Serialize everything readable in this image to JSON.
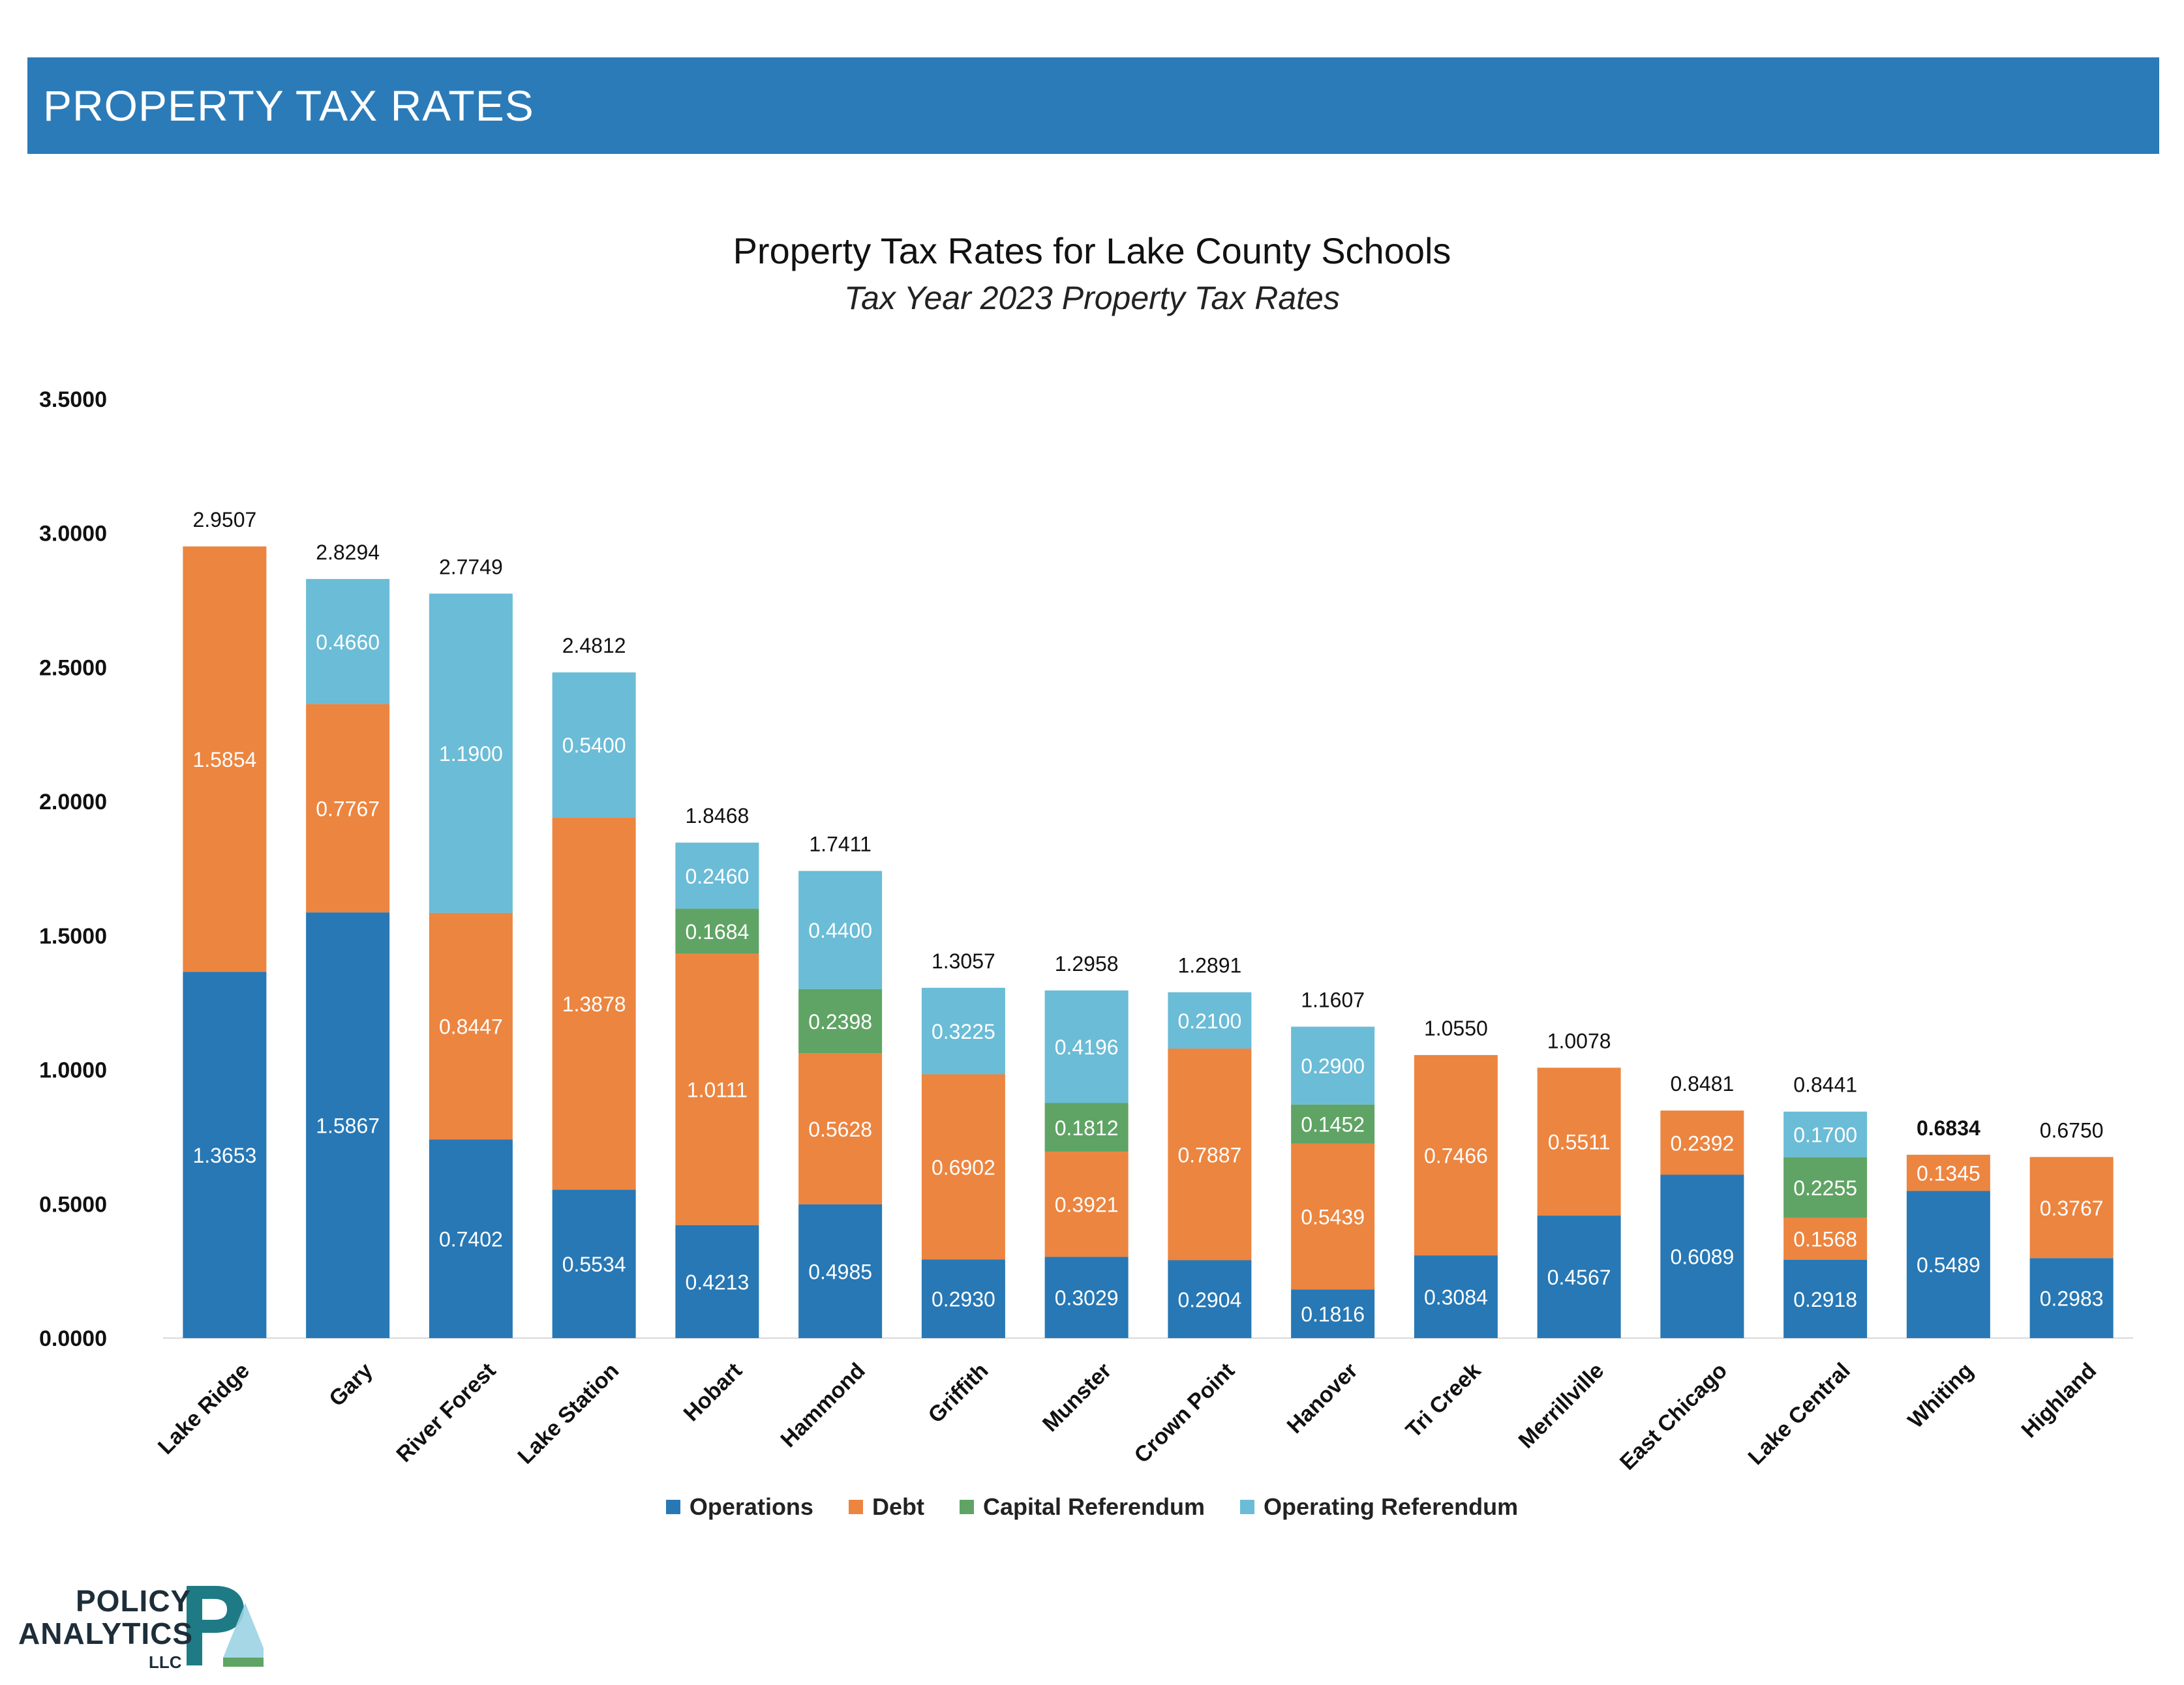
{
  "banner": {
    "title": "PROPERTY TAX RATES"
  },
  "logo": {
    "line1": "POLICY",
    "line2": "ANALYTICS",
    "line3": "LLC"
  },
  "chart_data": {
    "type": "bar",
    "stacked": true,
    "title": "Property Tax Rates for Lake County Schools",
    "subtitle": "Tax Year 2023 Property Tax Rates",
    "xlabel": "",
    "ylabel": "",
    "ylim": [
      0,
      3.5
    ],
    "yticks": [
      "0.0000",
      "0.5000",
      "1.0000",
      "1.5000",
      "2.0000",
      "2.5000",
      "3.0000",
      "3.5000"
    ],
    "grid": false,
    "legend_position": "bottom",
    "categories": [
      "Lake Ridge",
      "Gary",
      "River Forest",
      "Lake Station",
      "Hobart",
      "Hammond",
      "Griffith",
      "Munster",
      "Crown Point",
      "Hanover",
      "Tri Creek",
      "Merrillville",
      "East Chicago",
      "Lake Central",
      "Whiting",
      "Highland"
    ],
    "series": [
      {
        "name": "Operations",
        "color": "#2778b5",
        "values": [
          1.3653,
          1.5867,
          0.7402,
          0.5534,
          0.4213,
          0.4985,
          0.293,
          0.3029,
          0.2904,
          0.1816,
          0.3084,
          0.4567,
          0.6089,
          0.2918,
          0.5489,
          0.2983
        ]
      },
      {
        "name": "Debt",
        "color": "#ec8540",
        "values": [
          1.5854,
          0.7767,
          0.8447,
          1.3878,
          1.0111,
          0.5628,
          0.6902,
          0.3921,
          0.7887,
          0.5439,
          0.7466,
          0.5511,
          0.2392,
          0.1568,
          0.1345,
          0.3767
        ]
      },
      {
        "name": "Capital Referendum",
        "color": "#5fa464",
        "values": [
          null,
          null,
          null,
          null,
          0.1684,
          0.2398,
          null,
          0.1812,
          null,
          0.1452,
          null,
          null,
          null,
          0.2255,
          null,
          null
        ]
      },
      {
        "name": "Operating Referendum",
        "color": "#6bbcd6",
        "values": [
          null,
          0.466,
          1.19,
          0.54,
          0.246,
          0.44,
          0.3225,
          0.4196,
          0.21,
          0.29,
          null,
          null,
          null,
          0.17,
          null,
          null
        ]
      }
    ],
    "segment_labels": [
      [
        "1.3653",
        "1.5867",
        "0.7402",
        "0.5534",
        "0.4213",
        "0.4985",
        "0.2930",
        "0.3029",
        "0.2904",
        "0.1816",
        "0.3084",
        "0.4567",
        "0.6089",
        "0.2918",
        "0.5489",
        "0.2983"
      ],
      [
        "1.5854",
        "0.7767",
        "0.8447",
        "1.3878",
        "1.0111",
        "0.5628",
        "0.6902",
        "0.3921",
        "0.7887",
        "0.5439",
        "0.7466",
        "0.5511",
        "0.2392",
        "0.1568",
        "0.1345",
        "0.3767"
      ],
      [
        "",
        "",
        "",
        "",
        "0.1684",
        "0.2398",
        "",
        "0.1812",
        "",
        "0.1452",
        "",
        "",
        "",
        "0.2255",
        "",
        ""
      ],
      [
        "",
        "0.4660",
        "1.1900",
        "0.5400",
        "0.2460",
        "0.4400",
        "0.3225",
        "0.4196",
        "0.2100",
        "0.2900",
        "",
        "",
        "",
        "0.1700",
        "",
        ""
      ]
    ],
    "totals": [
      "2.9507",
      "2.8294",
      "2.7749",
      "2.4812",
      "1.8468",
      "1.7411",
      "1.3057",
      "1.2958",
      "1.2891",
      "1.1607",
      "1.0550",
      "1.0078",
      "0.8481",
      "0.8441",
      "0.6834",
      "0.6750"
    ]
  }
}
